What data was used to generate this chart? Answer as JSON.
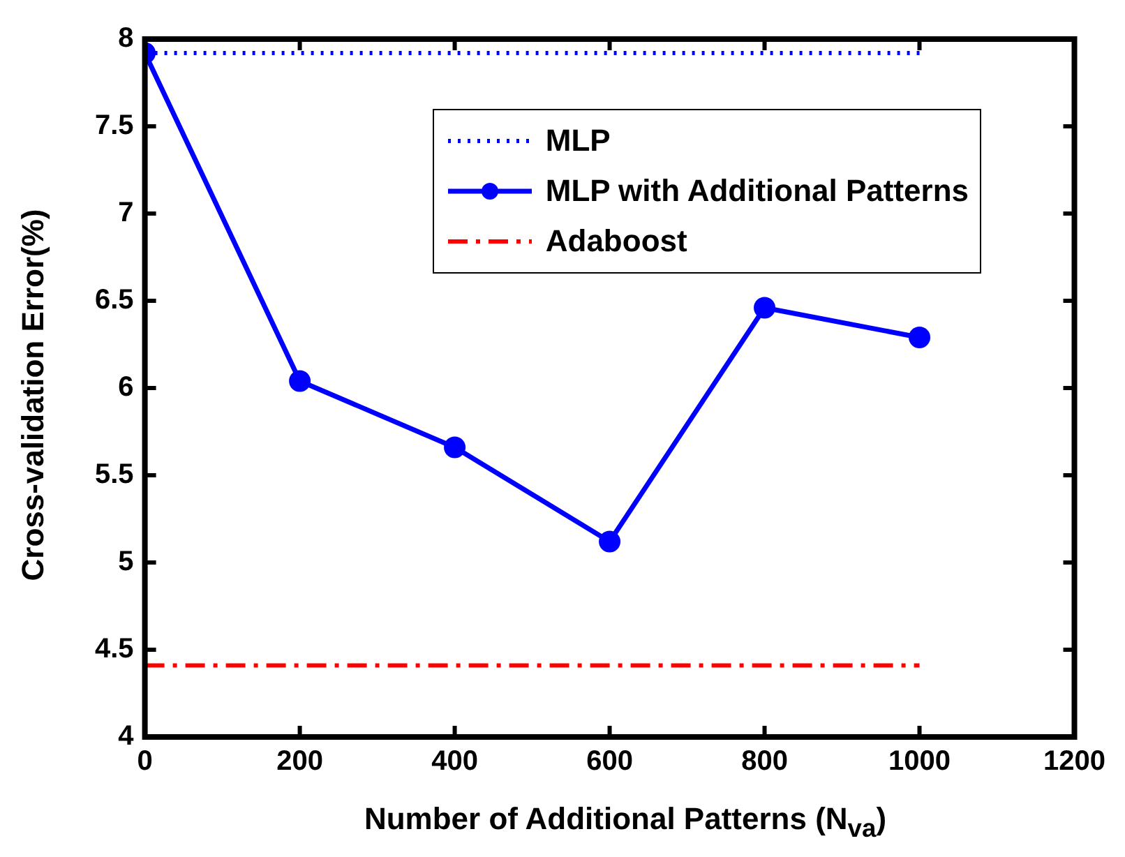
{
  "chart_data": {
    "type": "line",
    "xlabel": "Number of Additional Patterns (N$_{va}$)",
    "ylabel": "Cross-validation Error(%)",
    "xlim": [
      0,
      1200
    ],
    "xticks": [
      0,
      200,
      400,
      600,
      800,
      1000,
      1200
    ],
    "ylim": [
      4,
      8
    ],
    "yticks": [
      4,
      4.5,
      5,
      5.5,
      6,
      6.5,
      7,
      7.5,
      8
    ],
    "grid": false,
    "legend": "top right",
    "series": [
      {
        "name": "MLP",
        "color": "#0000ff",
        "x": [
          0,
          1000
        ],
        "values": [
          7.92,
          7.92
        ],
        "line_style": "dotted"
      },
      {
        "name": "MLP with Additional Patterns",
        "color": "#0000ff",
        "x": [
          0,
          200,
          400,
          600,
          800,
          1000
        ],
        "values": [
          7.92,
          6.04,
          5.66,
          5.12,
          6.46,
          6.29
        ],
        "line_style": "solid",
        "marker": "circle"
      },
      {
        "name": "Adaboost",
        "color": "#ff0000",
        "x": [
          0,
          1000
        ],
        "values": [
          4.41,
          4.41
        ],
        "line_style": "dashed"
      }
    ]
  }
}
